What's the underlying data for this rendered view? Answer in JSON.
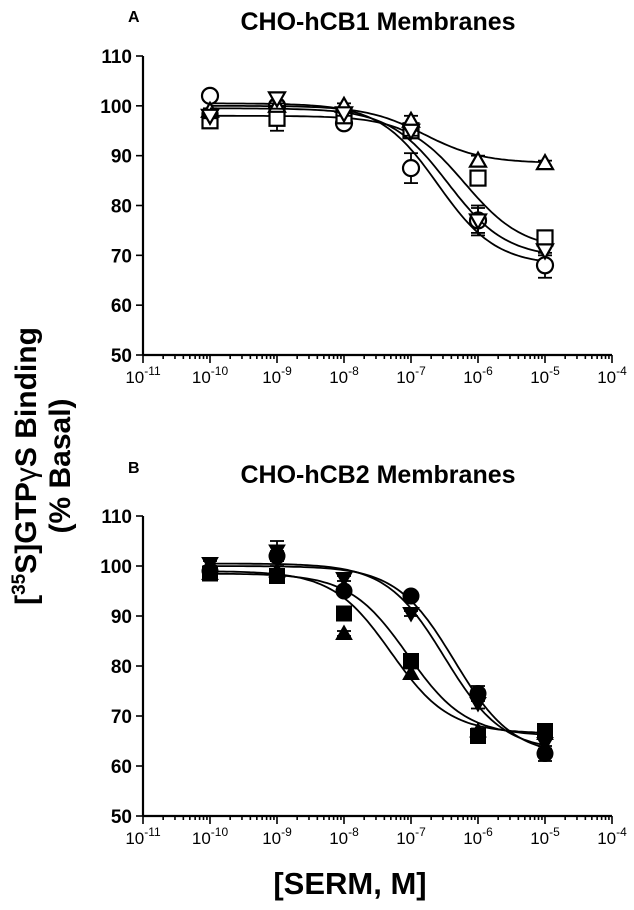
{
  "ylabel": "[³⁵S]GTPγS Binding (% Basal)",
  "ylabel_parts": {
    "open": "[",
    "sup": "35",
    "rest": "S]GTP",
    "gamma": "γ",
    "tail": "S Binding"
  },
  "ylabel_line2": "(% Basal)",
  "xlabel": "[SERM, M]",
  "chart_data": [
    {
      "type": "scatter",
      "panel": "A",
      "title": "CHO-hCB1 Membranes",
      "xlabel": "",
      "ylabel": "[35S]GTPγS Binding (% Basal)",
      "x_scale": "log",
      "xlim": [
        1e-11,
        0.0001
      ],
      "ylim": [
        50,
        110
      ],
      "yticks": [
        50,
        60,
        70,
        80,
        90,
        100,
        110
      ],
      "xtick_exponents": [
        "-11",
        "-10",
        "-9",
        "-8",
        "-7",
        "-6",
        "-5",
        "-4"
      ],
      "x": [
        1e-10,
        1e-09,
        1e-08,
        1e-07,
        1e-06,
        1e-05
      ],
      "series": [
        {
          "marker": "open-circle",
          "values": [
            102,
            100,
            96.5,
            87.5,
            77,
            68
          ],
          "errors": [
            0,
            1,
            0.5,
            3,
            2.5,
            2.5
          ],
          "fit": {
            "top": 100.5,
            "bottom": 68,
            "logec50": -6.6
          }
        },
        {
          "marker": "open-square",
          "values": [
            97,
            97.5,
            98,
            95,
            85.5,
            73.5
          ],
          "errors": [
            1,
            2.5,
            0.5,
            1,
            1,
            1
          ],
          "fit": {
            "top": 98,
            "bottom": 71,
            "logec50": -6.2
          }
        },
        {
          "marker": "open-triangle-up",
          "values": [
            99,
            100,
            100,
            97,
            89,
            88.5
          ],
          "errors": [
            0.5,
            1,
            0.5,
            1,
            1,
            0.5
          ],
          "fit": {
            "top": 100,
            "bottom": 88.5,
            "logec50": -6.8
          }
        },
        {
          "marker": "open-triangle-down",
          "values": [
            98,
            101.5,
            98.5,
            95,
            77,
            71
          ],
          "errors": [
            0.5,
            1,
            0.5,
            1,
            3,
            1
          ],
          "fit": {
            "top": 99.5,
            "bottom": 69.5,
            "logec50": -6.45
          }
        }
      ]
    },
    {
      "type": "scatter",
      "panel": "B",
      "title": "CHO-hCB2 Membranes",
      "xlabel": "[SERM, M]",
      "ylabel": "[35S]GTPγS Binding (% Basal)",
      "x_scale": "log",
      "xlim": [
        1e-11,
        0.0001
      ],
      "ylim": [
        50,
        110
      ],
      "yticks": [
        50,
        60,
        70,
        80,
        90,
        100,
        110
      ],
      "xtick_exponents": [
        "-11",
        "-10",
        "-9",
        "-8",
        "-7",
        "-6",
        "-5",
        "-4"
      ],
      "x": [
        1e-10,
        1e-09,
        1e-08,
        1e-07,
        1e-06,
        1e-05
      ],
      "series": [
        {
          "marker": "filled-circle",
          "values": [
            99,
            102,
            95,
            94,
            74.5,
            62.5
          ],
          "errors": [
            0,
            1,
            0.5,
            0.5,
            1.5,
            1.5
          ],
          "fit": {
            "top": 100,
            "bottom": 62,
            "logec50": -6.35
          }
        },
        {
          "marker": "filled-square",
          "values": [
            98.5,
            98,
            90.5,
            81,
            66,
            67
          ],
          "errors": [
            0,
            1,
            1,
            1,
            0.5,
            0.5
          ],
          "fit": {
            "top": 98.5,
            "bottom": 66,
            "logec50": -7.05
          }
        },
        {
          "marker": "filled-triangle-up",
          "values": [
            98.5,
            99,
            86.5,
            78.5,
            67,
            66.5
          ],
          "errors": [
            0,
            1,
            0.5,
            1,
            0.5,
            0.5
          ],
          "fit": {
            "top": 99,
            "bottom": 66.5,
            "logec50": -7.3
          }
        },
        {
          "marker": "filled-triangle-down",
          "values": [
            100.5,
            103,
            97.5,
            90.5,
            72.5,
            64.5
          ],
          "errors": [
            0.5,
            2,
            0.5,
            0.5,
            1,
            1
          ],
          "fit": {
            "top": 100.5,
            "bottom": 63,
            "logec50": -6.5
          }
        }
      ]
    }
  ]
}
